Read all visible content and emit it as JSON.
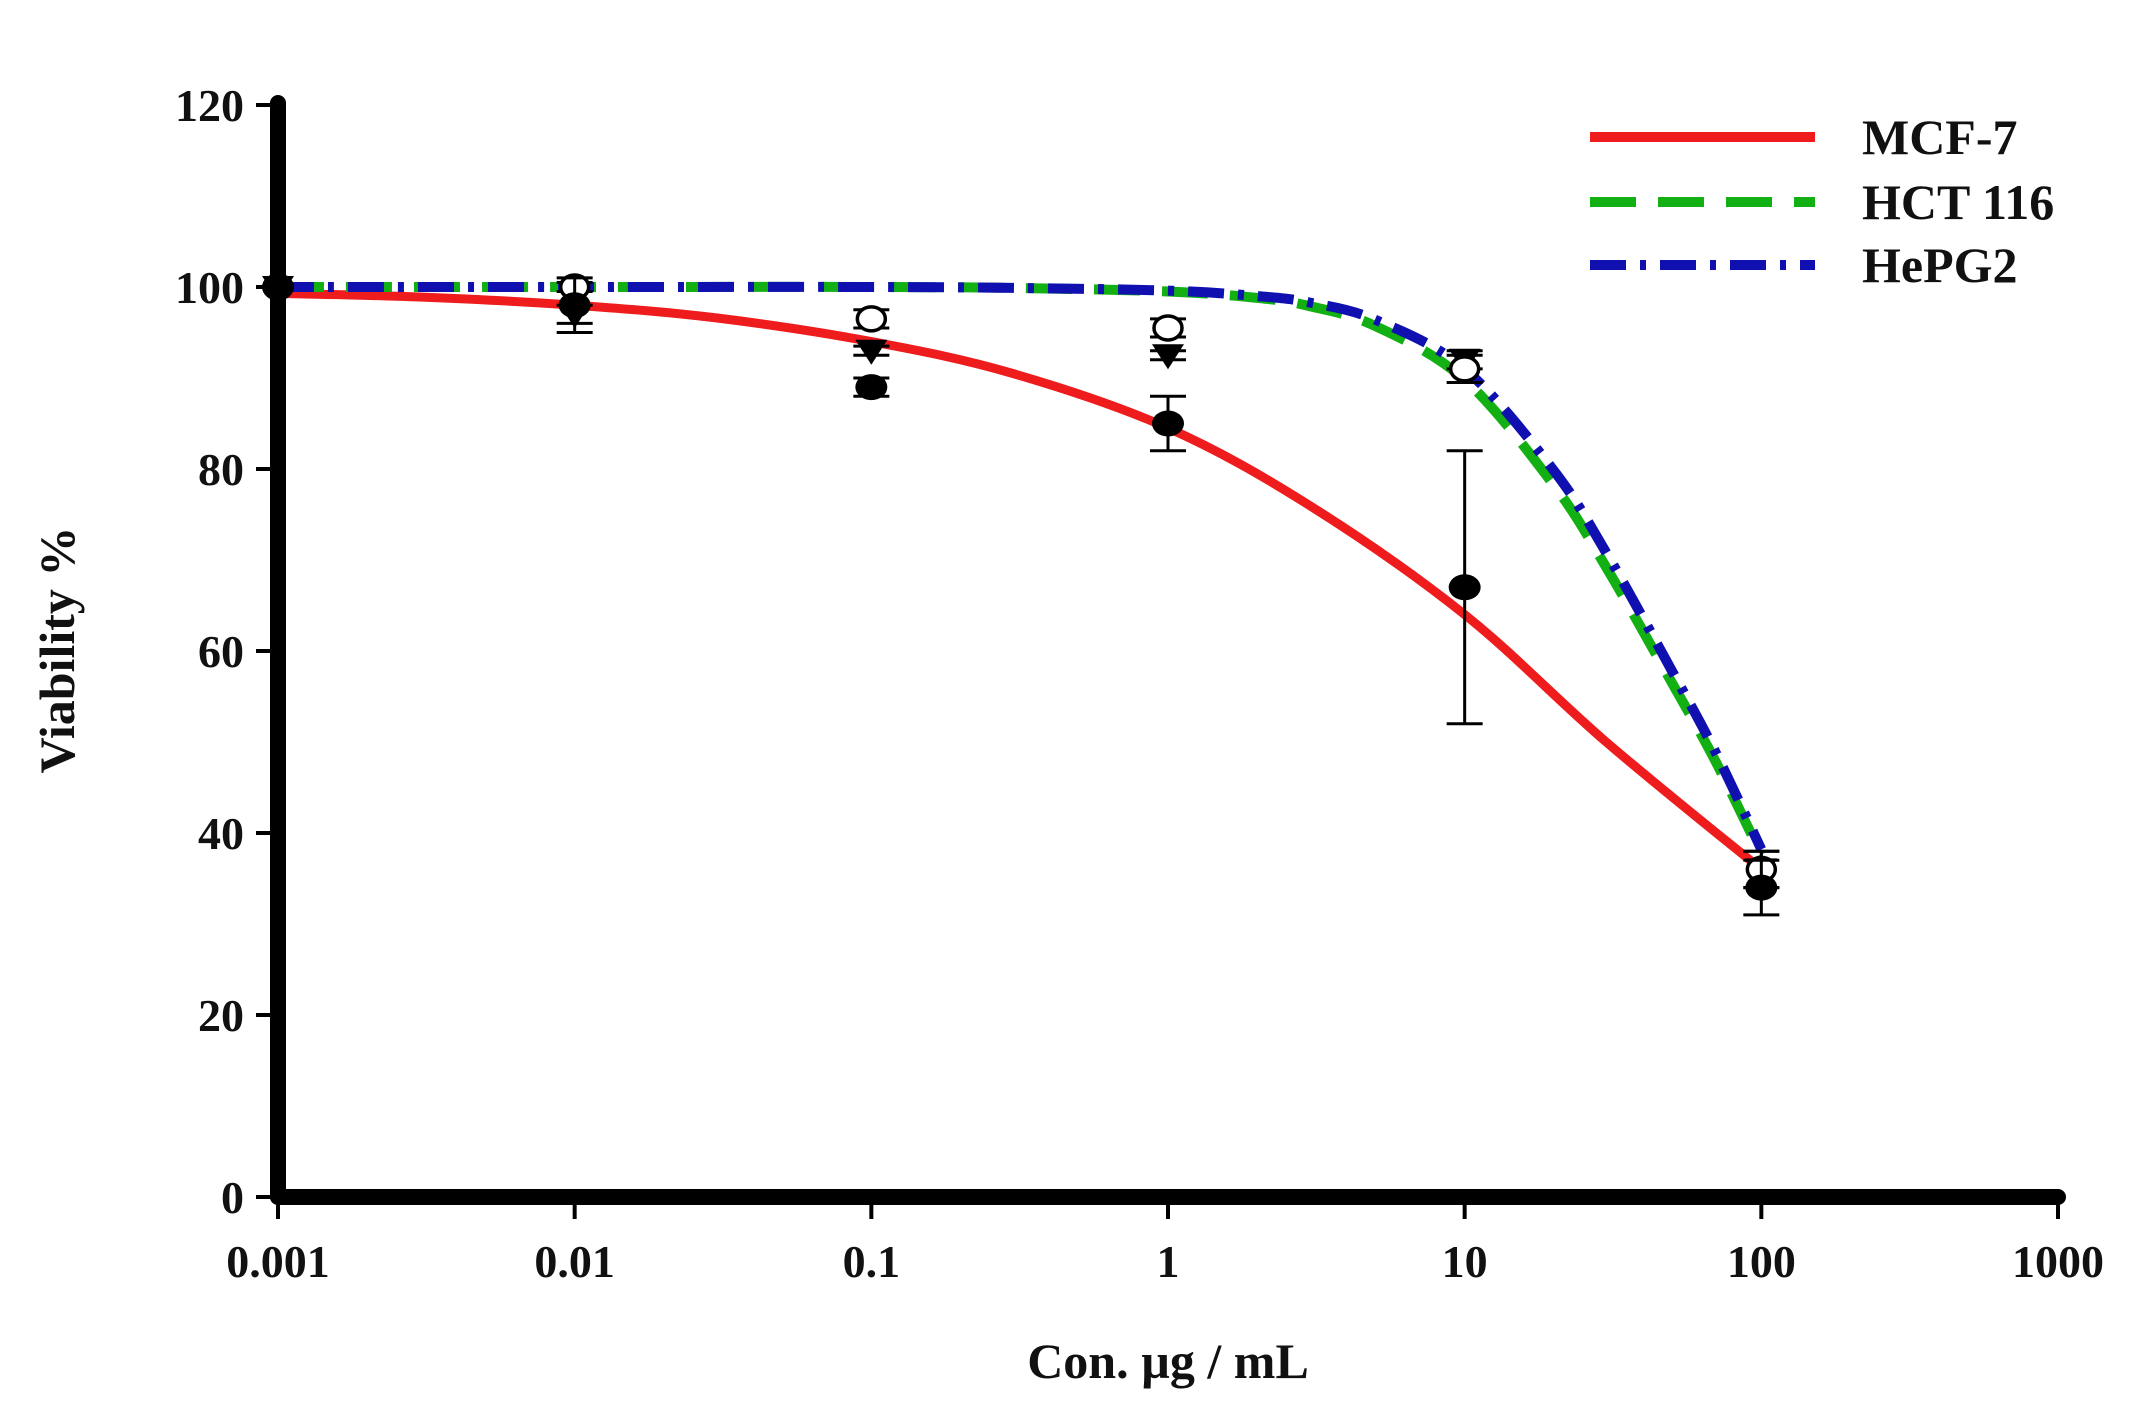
{
  "chart_data": {
    "type": "line",
    "title": "",
    "xlabel": "Con. µg / mL",
    "ylabel": "Viability %",
    "xscale": "log",
    "xlim": [
      0.001,
      1000
    ],
    "ylim": [
      0,
      120
    ],
    "x_ticks": [
      0.001,
      0.01,
      0.1,
      1,
      10,
      100,
      1000
    ],
    "x_tick_labels": [
      "0.001",
      "0.01",
      "0.1",
      "1",
      "10",
      "100",
      "1000"
    ],
    "y_ticks": [
      0,
      20,
      40,
      60,
      80,
      100,
      120
    ],
    "y_tick_labels": [
      "0",
      "20",
      "40",
      "60",
      "80",
      "100",
      "120"
    ],
    "grid": false,
    "legend_position": "top-right",
    "series": [
      {
        "name": "MCF-7",
        "color": "#ee1c1c",
        "line_style": "solid",
        "marker": "filled-circle",
        "x": [
          0.001,
          0.01,
          0.1,
          1,
          10,
          100
        ],
        "values": [
          100,
          98,
          89,
          85,
          67,
          34
        ],
        "error": [
          0,
          3,
          1,
          3,
          15,
          3
        ],
        "fit_x": [
          0.001,
          0.003,
          0.01,
          0.03,
          0.1,
          0.3,
          1,
          3,
          10,
          30,
          100
        ],
        "fit_y": [
          99.3,
          98.9,
          98,
          96.6,
          94,
          90.5,
          84.5,
          76,
          64,
          50,
          36
        ]
      },
      {
        "name": "HCT 116",
        "color": "#12b012",
        "line_style": "dashed",
        "marker": "open-circle",
        "x": [
          0.001,
          0.01,
          0.1,
          1,
          10,
          100
        ],
        "values": [
          100,
          100,
          96.5,
          95.5,
          91,
          36
        ],
        "error": [
          0,
          0.5,
          1,
          1,
          1.5,
          2
        ],
        "fit_x": [
          0.001,
          0.01,
          0.1,
          0.3,
          1,
          2,
          3,
          5,
          10,
          20,
          30,
          50,
          70,
          100
        ],
        "fit_y": [
          100,
          100,
          100,
          99.9,
          99.5,
          98.8,
          97.9,
          95.7,
          89.8,
          78.2,
          69.2,
          56.5,
          47.9,
          37.6
        ]
      },
      {
        "name": "HePG2",
        "color": "#1010b0",
        "line_style": "dash-dot",
        "marker": "filled-triangle-down",
        "x": [
          0.001,
          0.01,
          0.1,
          1,
          10,
          100
        ],
        "values": [
          100,
          97,
          93,
          92.5,
          92,
          36
        ],
        "error": [
          0,
          1,
          0.5,
          0.5,
          1,
          2
        ],
        "fit_x": [
          0.001,
          0.01,
          0.1,
          0.3,
          1,
          2,
          3,
          5,
          10,
          20,
          30,
          50,
          70,
          100
        ],
        "fit_y": [
          100,
          100,
          100,
          99.9,
          99.6,
          99,
          98.3,
          96.4,
          91,
          79.8,
          70.8,
          57.8,
          48.9,
          38.2
        ]
      }
    ]
  }
}
